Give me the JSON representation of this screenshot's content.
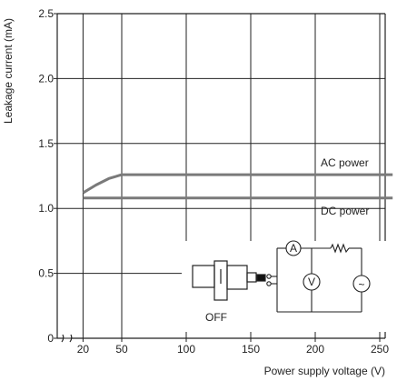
{
  "chart_data": {
    "type": "line",
    "title": "",
    "xlabel": "Power supply voltage (V)",
    "ylabel": "Leakage current (mA)",
    "xlim": [
      0,
      260
    ],
    "ylim": [
      0,
      2.5
    ],
    "x_ticks": [
      20,
      50,
      100,
      150,
      200,
      250
    ],
    "y_ticks": [
      0,
      0.5,
      1.0,
      1.5,
      2.0,
      2.5
    ],
    "x_tick_labels": [
      "20",
      "50",
      "100",
      "150",
      "200",
      "250"
    ],
    "y_tick_labels": [
      "0",
      "0.5",
      "1.0",
      "1.5",
      "2.0",
      "2.5"
    ],
    "x_axis_break": true,
    "grid": true,
    "series": [
      {
        "name": "AC power",
        "x": [
          20,
          30,
          40,
          50,
          260
        ],
        "y": [
          1.12,
          1.18,
          1.23,
          1.26,
          1.26
        ],
        "color": "#7a7a7a"
      },
      {
        "name": "DC power",
        "x": [
          20,
          260
        ],
        "y": [
          1.08,
          1.08
        ],
        "color": "#7a7a7a"
      }
    ],
    "inset": {
      "off_label": "OFF",
      "meter_symbols": [
        "A",
        "V"
      ],
      "source_symbol": "~"
    }
  }
}
